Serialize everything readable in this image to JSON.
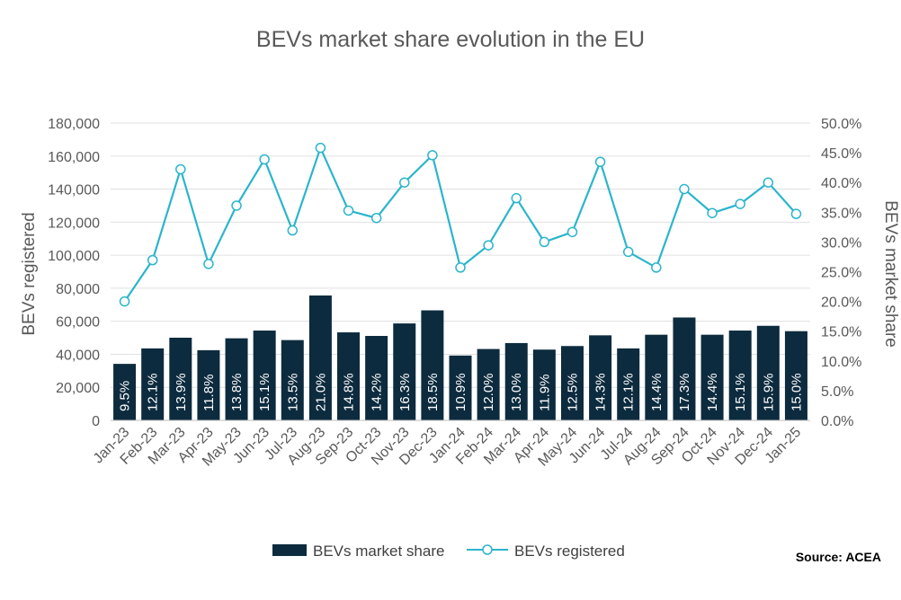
{
  "chart_data": {
    "type": "bar",
    "title": "BEVs market share evolution in the EU",
    "categories": [
      "Jan-23",
      "Feb-23",
      "Mar-23",
      "Apr-23",
      "May-23",
      "Jun-23",
      "Jul-23",
      "Aug-23",
      "Sep-23",
      "Oct-23",
      "Nov-23",
      "Dec-23",
      "Jan-24",
      "Feb-24",
      "Mar-24",
      "Apr-24",
      "May-24",
      "Jun-24",
      "Jul-24",
      "Aug-24",
      "Sep-24",
      "Oct-24",
      "Nov-24",
      "Dec-24",
      "Jan-25"
    ],
    "series": [
      {
        "name": "BEVs market share",
        "type": "bar",
        "axis": "right",
        "values": [
          9.5,
          12.1,
          13.9,
          11.8,
          13.8,
          15.1,
          13.5,
          21.0,
          14.8,
          14.2,
          16.3,
          18.5,
          10.9,
          12.0,
          13.0,
          11.9,
          12.5,
          14.3,
          12.1,
          14.4,
          17.3,
          14.4,
          15.1,
          15.9,
          15.0
        ],
        "labels": [
          "9.5%",
          "12.1%",
          "13.9%",
          "11.8%",
          "13.8%",
          "15.1%",
          "13.5%",
          "21.0%",
          "14.8%",
          "14.2%",
          "16.3%",
          "18.5%",
          "10.9%",
          "12.0%",
          "13.0%",
          "11.9%",
          "12.5%",
          "14.3%",
          "12.1%",
          "14.4%",
          "17.3%",
          "14.4%",
          "15.1%",
          "15.9%",
          "15.0%"
        ],
        "color": "#0d2b3e"
      },
      {
        "name": "BEVs registered",
        "type": "line",
        "axis": "left",
        "values": [
          72000,
          97000,
          152000,
          94700,
          130000,
          158000,
          115000,
          165000,
          127000,
          122500,
          144000,
          160500,
          92500,
          106000,
          134500,
          108000,
          114000,
          156500,
          102000,
          92500,
          140000,
          125500,
          131000,
          144000,
          125000
        ],
        "color": "#2bb5cc",
        "marker": "hollow-circle"
      }
    ],
    "y_left": {
      "label": "BEVs registered",
      "range": [
        0,
        180000
      ],
      "ticks": [
        0,
        20000,
        40000,
        60000,
        80000,
        100000,
        120000,
        140000,
        160000,
        180000
      ],
      "tick_labels": [
        "0",
        "20,000",
        "40,000",
        "60,000",
        "80,000",
        "100,000",
        "120,000",
        "140,000",
        "160,000",
        "180,000"
      ]
    },
    "y_right": {
      "label": "BEVs market share",
      "range": [
        0,
        50
      ],
      "ticks": [
        0,
        5,
        10,
        15,
        20,
        25,
        30,
        35,
        40,
        45,
        50
      ],
      "tick_labels": [
        "0.0%",
        "5.0%",
        "10.0%",
        "15.0%",
        "20.0%",
        "25.0%",
        "30.0%",
        "35.0%",
        "40.0%",
        "45.0%",
        "50.0%"
      ]
    },
    "grid": true,
    "legend_position": "bottom",
    "source": "Source: ACEA"
  }
}
